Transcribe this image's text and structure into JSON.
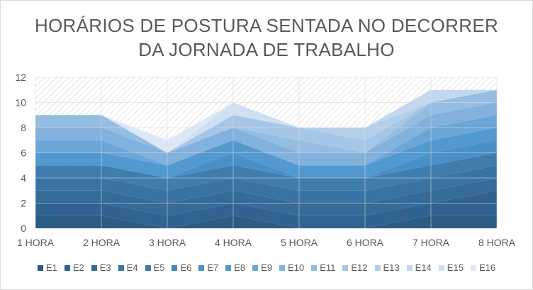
{
  "chart_data": {
    "type": "area",
    "stacked": true,
    "title_lines": [
      "HORÁRIOS DE POSTURA SENTADA NO DECORRER",
      "DA JORNADA DE TRABALHO"
    ],
    "categories": [
      "1 HORA",
      "2 HORA",
      "3 HORA",
      "4 HORA",
      "5 HORA",
      "6 HORA",
      "7 HORA",
      "8 HORA"
    ],
    "ylim": [
      0,
      12
    ],
    "yticks": [
      0,
      2,
      4,
      6,
      8,
      10,
      12
    ],
    "grid": true,
    "legend_position": "bottom",
    "plot_area_pattern": "diagonal-hatch",
    "series": [
      {
        "name": "E1",
        "color": "#2c5b84",
        "values": [
          1,
          1,
          0,
          1,
          0,
          0,
          1,
          1
        ]
      },
      {
        "name": "E2",
        "color": "#30638f",
        "values": [
          1,
          1,
          1,
          1,
          1,
          1,
          1,
          2
        ]
      },
      {
        "name": "E3",
        "color": "#356b99",
        "values": [
          1,
          1,
          1,
          1,
          1,
          1,
          1,
          1
        ]
      },
      {
        "name": "E4",
        "color": "#3973a3",
        "values": [
          1,
          1,
          1,
          1,
          1,
          1,
          1,
          1
        ]
      },
      {
        "name": "E5",
        "color": "#3f7dae",
        "values": [
          1,
          1,
          1,
          1,
          1,
          1,
          1,
          1
        ]
      },
      {
        "name": "E6",
        "color": "#4586bb",
        "values": [
          0,
          0,
          0,
          0,
          0,
          0,
          0,
          0
        ]
      },
      {
        "name": "E7",
        "color": "#4a8fc6",
        "values": [
          0,
          0,
          0,
          1,
          0,
          0,
          1,
          1
        ]
      },
      {
        "name": "E8",
        "color": "#5299d0",
        "values": [
          1,
          1,
          1,
          1,
          1,
          1,
          1,
          1
        ]
      },
      {
        "name": "E9",
        "color": "#6ca6d8",
        "values": [
          1,
          1,
          0,
          0,
          0,
          0,
          1,
          1
        ]
      },
      {
        "name": "E10",
        "color": "#82b1dd",
        "values": [
          1,
          1,
          1,
          1,
          1,
          1,
          1,
          1
        ]
      },
      {
        "name": "E11",
        "color": "#95bde2",
        "values": [
          1,
          1,
          0,
          0,
          1,
          0,
          1,
          1
        ]
      },
      {
        "name": "E12",
        "color": "#a5c6e7",
        "values": [
          0,
          0,
          0,
          1,
          1,
          1,
          0,
          0
        ]
      },
      {
        "name": "E13",
        "color": "#b3cfea",
        "values": [
          0,
          0,
          0,
          0,
          0,
          1,
          0,
          0
        ]
      },
      {
        "name": "E14",
        "color": "#c1d8ee",
        "values": [
          0,
          0,
          0,
          0,
          0,
          0,
          1,
          0
        ]
      },
      {
        "name": "E15",
        "color": "#cfe0f2",
        "values": [
          0,
          0,
          0,
          1,
          0,
          0,
          0,
          0
        ]
      },
      {
        "name": "E16",
        "color": "#dce8f6",
        "values": [
          0,
          0,
          1,
          0,
          0,
          0,
          0,
          0
        ]
      }
    ]
  }
}
